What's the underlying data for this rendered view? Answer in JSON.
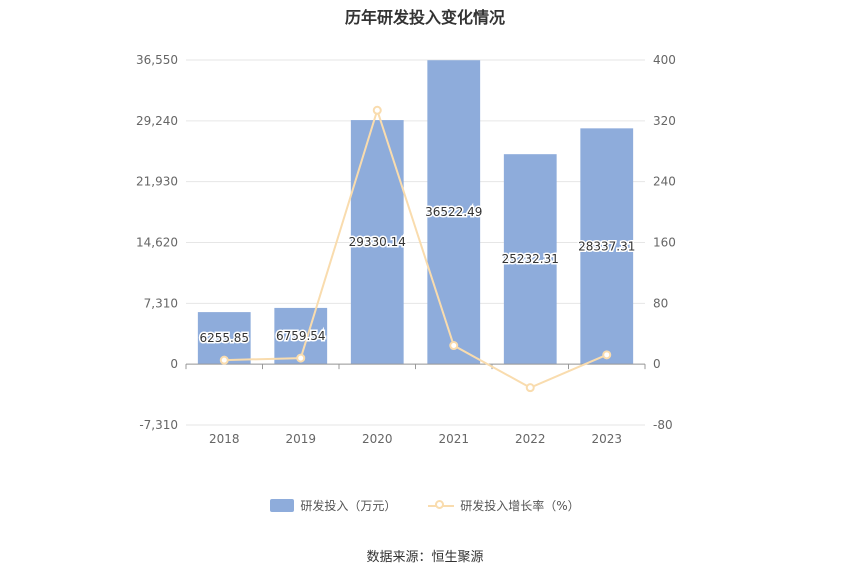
{
  "chart_data": {
    "type": "bar",
    "title": "历年研发投入变化情况",
    "categories": [
      "2018",
      "2019",
      "2020",
      "2021",
      "2022",
      "2023"
    ],
    "series": [
      {
        "name": "研发投入（万元）",
        "type": "bar",
        "axis": "left",
        "values": [
          6255.85,
          6759.54,
          29330.14,
          36522.49,
          25232.31,
          28337.31
        ],
        "labels": [
          "6255.85",
          "6759.54",
          "29330.14",
          "36522.49",
          "25232.31",
          "28337.31"
        ],
        "color": "#8eacdb"
      },
      {
        "name": "研发投入增长率（%）",
        "type": "line",
        "axis": "right",
        "values": [
          5.3,
          8.0,
          333.9,
          24.5,
          -30.9,
          12.3
        ],
        "color": "#f9dcae"
      }
    ],
    "y_left": {
      "min": -7310,
      "max": 36550,
      "ticks": [
        "-7,310",
        "0",
        "7,310",
        "14,620",
        "21,930",
        "29,240",
        "36,550"
      ]
    },
    "y_right": {
      "min": -80,
      "max": 400,
      "ticks": [
        "-80",
        "0",
        "80",
        "160",
        "240",
        "320",
        "400"
      ]
    },
    "grid": true,
    "legend_position": "bottom"
  },
  "source": "数据来源：恒生聚源"
}
